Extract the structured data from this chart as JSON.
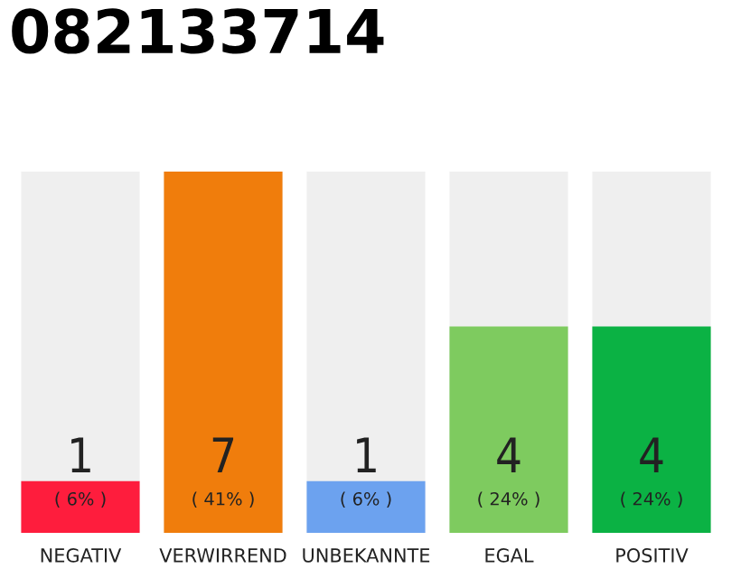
{
  "chart_data": {
    "type": "bar",
    "title": "082133714",
    "categories": [
      "NEGATIV",
      "VERWIRREND",
      "UNBEKANNTE",
      "EGAL",
      "POSITIV"
    ],
    "values": [
      1,
      7,
      1,
      4,
      4
    ],
    "colors": [
      "#fe1d3d",
      "#f07d0c",
      "#6ca2ef",
      "#7ecb5f",
      "#0bb244"
    ],
    "data_labels": true,
    "annotations": [
      "( 6% )",
      "( 41% )",
      "( 6% )",
      "( 24% )",
      "( 24% )"
    ],
    "grid": false,
    "legend": false
  }
}
